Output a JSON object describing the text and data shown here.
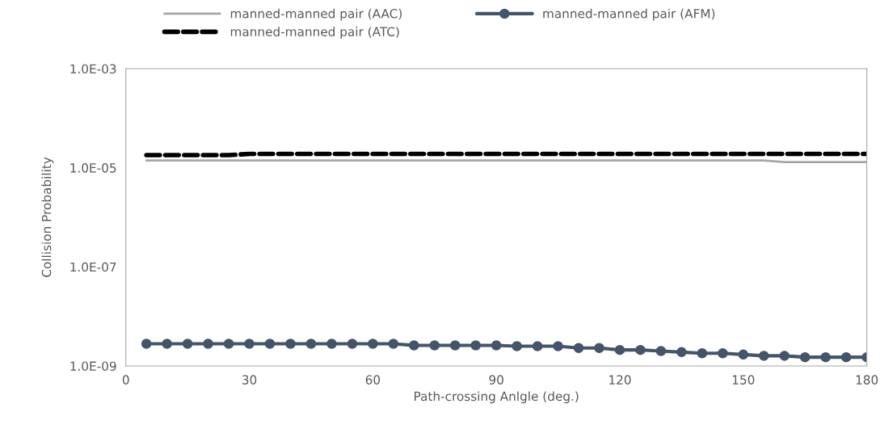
{
  "chart_data": {
    "type": "line",
    "xlabel": "Path-crossing Anlgle (deg.)",
    "ylabel": "Collision Probability",
    "x": [
      5,
      10,
      15,
      20,
      25,
      30,
      35,
      40,
      45,
      50,
      55,
      60,
      65,
      70,
      75,
      80,
      85,
      90,
      95,
      100,
      105,
      110,
      115,
      120,
      125,
      130,
      135,
      140,
      145,
      150,
      155,
      160,
      165,
      170,
      175,
      180
    ],
    "series": [
      {
        "name": "manned-manned pair (AAC)",
        "color": "#a6a6a6",
        "line_style": "solid",
        "marker": "none",
        "values": [
          1.4e-05,
          1.4e-05,
          1.4e-05,
          1.4e-05,
          1.4e-05,
          1.4e-05,
          1.4e-05,
          1.4e-05,
          1.4e-05,
          1.4e-05,
          1.4e-05,
          1.4e-05,
          1.4e-05,
          1.4e-05,
          1.4e-05,
          1.4e-05,
          1.4e-05,
          1.4e-05,
          1.4e-05,
          1.4e-05,
          1.4e-05,
          1.4e-05,
          1.4e-05,
          1.4e-05,
          1.4e-05,
          1.4e-05,
          1.4e-05,
          1.4e-05,
          1.4e-05,
          1.4e-05,
          1.4e-05,
          1.3e-05,
          1.3e-05,
          1.3e-05,
          1.3e-05,
          1.3e-05
        ]
      },
      {
        "name": "manned-manned pair (ATC)",
        "color": "#000000",
        "line_style": "dashed",
        "marker": "none",
        "values": [
          1.8e-05,
          1.8e-05,
          1.8e-05,
          1.8e-05,
          1.8e-05,
          1.9e-05,
          1.9e-05,
          1.9e-05,
          1.9e-05,
          1.9e-05,
          1.9e-05,
          1.9e-05,
          1.9e-05,
          1.9e-05,
          1.9e-05,
          1.9e-05,
          1.9e-05,
          1.9e-05,
          1.9e-05,
          1.9e-05,
          1.9e-05,
          1.9e-05,
          1.9e-05,
          1.9e-05,
          1.9e-05,
          1.9e-05,
          1.9e-05,
          1.9e-05,
          1.9e-05,
          1.9e-05,
          1.9e-05,
          1.9e-05,
          1.9e-05,
          1.9e-05,
          1.9e-05,
          1.9e-05
        ]
      },
      {
        "name": "manned-manned pair (AFM)",
        "color": "#44546a",
        "line_style": "solid",
        "marker": "circle",
        "values": [
          2.8e-09,
          2.8e-09,
          2.8e-09,
          2.8e-09,
          2.8e-09,
          2.8e-09,
          2.8e-09,
          2.8e-09,
          2.8e-09,
          2.8e-09,
          2.8e-09,
          2.8e-09,
          2.8e-09,
          2.6e-09,
          2.6e-09,
          2.6e-09,
          2.6e-09,
          2.6e-09,
          2.5e-09,
          2.5e-09,
          2.5e-09,
          2.3e-09,
          2.3e-09,
          2.1e-09,
          2.1e-09,
          2e-09,
          1.9e-09,
          1.8e-09,
          1.8e-09,
          1.7e-09,
          1.6e-09,
          1.6e-09,
          1.5e-09,
          1.5e-09,
          1.5e-09,
          1.5e-09
        ]
      }
    ],
    "log": "y",
    "xlim": [
      0,
      180
    ],
    "xticks": [
      0,
      30,
      60,
      90,
      120,
      150,
      180
    ],
    "ylim": [
      1e-09,
      0.001
    ],
    "yticks": [
      {
        "value": 1e-09,
        "label": "1.0E-09"
      },
      {
        "value": 1e-07,
        "label": "1.0E-07"
      },
      {
        "value": 1e-05,
        "label": "1.0E-05"
      },
      {
        "value": 0.001,
        "label": "1.0E-03"
      }
    ],
    "grid": false,
    "legend": "top"
  }
}
